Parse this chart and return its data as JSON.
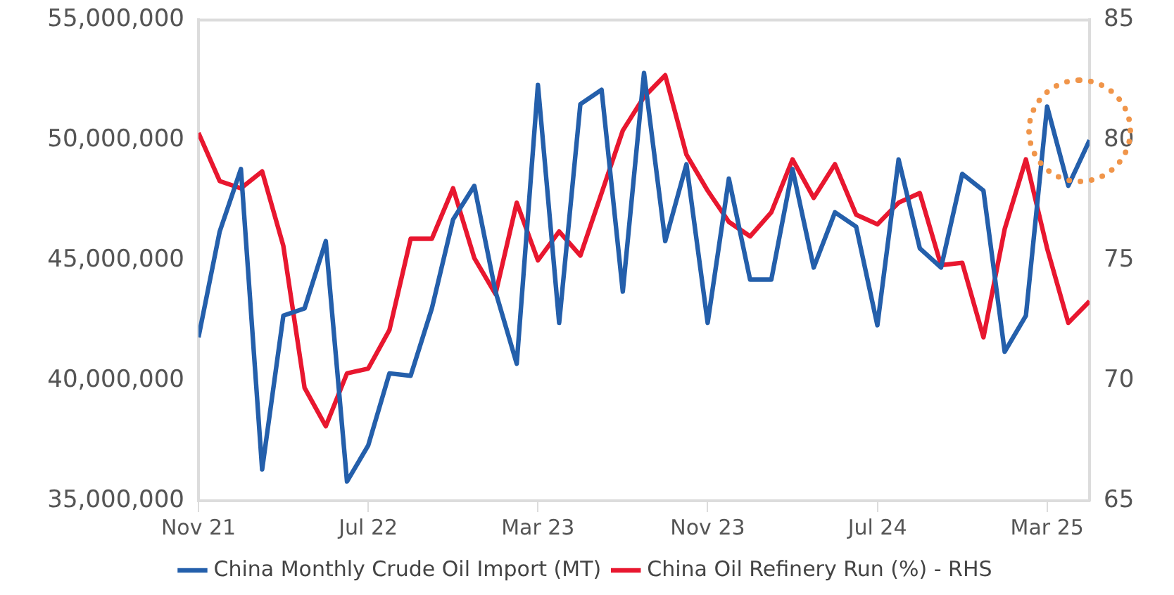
{
  "chart_data": {
    "type": "line",
    "x": [
      "2021-11",
      "2021-12",
      "2022-01",
      "2022-02",
      "2022-03",
      "2022-04",
      "2022-05",
      "2022-06",
      "2022-07",
      "2022-08",
      "2022-09",
      "2022-10",
      "2022-11",
      "2022-12",
      "2023-01",
      "2023-02",
      "2023-03",
      "2023-04",
      "2023-05",
      "2023-06",
      "2023-07",
      "2023-08",
      "2023-09",
      "2023-10",
      "2023-11",
      "2023-12",
      "2024-01",
      "2024-02",
      "2024-03",
      "2024-04",
      "2024-05",
      "2024-06",
      "2024-07",
      "2024-08",
      "2024-09",
      "2024-10",
      "2024-11",
      "2024-12",
      "2025-01",
      "2025-02",
      "2025-03",
      "2025-04",
      "2025-05"
    ],
    "series": [
      {
        "name": "China Monthly Crude Oil Import (MT)",
        "color": "#245fab",
        "values": [
          41800000,
          46200000,
          48800000,
          36300000,
          42700000,
          43000000,
          45800000,
          35800000,
          37300000,
          40300000,
          40200000,
          43000000,
          46700000,
          48100000,
          43700000,
          40700000,
          52300000,
          42400000,
          51500000,
          52100000,
          43700000,
          52800000,
          45800000,
          49000000,
          42400000,
          48400000,
          44200000,
          44200000,
          48800000,
          44700000,
          47000000,
          46400000,
          42300000,
          49200000,
          45500000,
          44700000,
          48600000,
          47900000,
          41200000,
          42700000,
          51400000,
          48100000,
          50000000
        ]
      },
      {
        "name": "China Oil Refinery Run (%) - RHS",
        "color": "#e8172f",
        "axis": "y2",
        "values": [
          80.3,
          78.3,
          78.0,
          78.7,
          75.6,
          69.7,
          68.1,
          70.3,
          70.5,
          72.1,
          75.9,
          75.9,
          78.0,
          75.1,
          73.6,
          77.4,
          75.0,
          76.2,
          75.2,
          77.8,
          80.4,
          81.8,
          82.7,
          79.4,
          77.9,
          76.6,
          76.0,
          77.0,
          79.2,
          77.6,
          79.0,
          76.9,
          76.5,
          77.4,
          77.8,
          74.8,
          74.9,
          71.8,
          76.3,
          79.2,
          75.5,
          72.4,
          73.3
        ]
      }
    ],
    "xlim": [
      "2021-11",
      "2025-05"
    ],
    "xticks": [
      {
        "value": "2021-11",
        "label": "Nov 21"
      },
      {
        "value": "2022-07",
        "label": "Jul 22"
      },
      {
        "value": "2023-03",
        "label": "Mar 23"
      },
      {
        "value": "2023-11",
        "label": "Nov 23"
      },
      {
        "value": "2024-07",
        "label": "Jul 24"
      },
      {
        "value": "2025-03",
        "label": "Mar 25"
      }
    ],
    "ylim": [
      35000000,
      55000000
    ],
    "yticks": [
      {
        "value": 35000000,
        "label": "35,000,000"
      },
      {
        "value": 40000000,
        "label": "40,000,000"
      },
      {
        "value": 45000000,
        "label": "45,000,000"
      },
      {
        "value": 50000000,
        "label": "50,000,000"
      },
      {
        "value": 55000000,
        "label": "55,000,000"
      }
    ],
    "y2lim": [
      65,
      85
    ],
    "y2ticks": [
      65,
      70,
      75,
      80,
      85
    ],
    "grid": false,
    "legend": "bottom",
    "marker": "none",
    "line_style": "solid"
  }
}
